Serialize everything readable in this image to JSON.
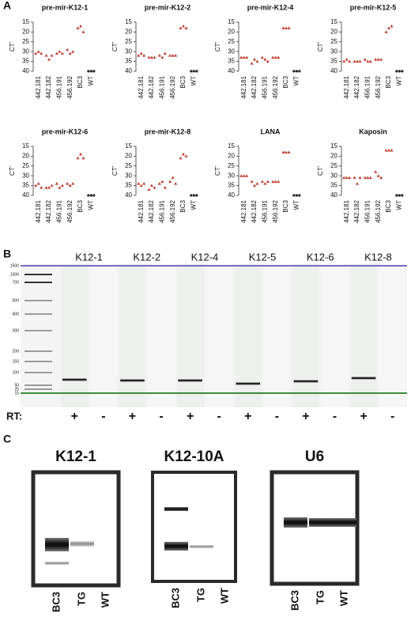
{
  "chart_data": [
    {
      "type": "scatter",
      "title": "pre-mir-K12-1",
      "ylabel": "CT'",
      "categories": [
        "442.181",
        "442.182",
        "456.191",
        "456.192",
        "BC3",
        "WT"
      ],
      "values": [
        [
          31,
          30,
          31
        ],
        [
          32,
          34,
          32
        ],
        [
          31,
          30,
          31
        ],
        [
          29,
          31,
          30
        ],
        [
          18,
          17,
          20
        ],
        [
          40,
          40,
          40
        ]
      ],
      "ylim": [
        15,
        40
      ],
      "inverted": true,
      "yticks": [
        15,
        20,
        25,
        30,
        35,
        40
      ],
      "color": "#c0392b",
      "undetected_color": "#222222"
    },
    {
      "type": "scatter",
      "title": "pre-mir-K12-2",
      "ylabel": "CT'",
      "categories": [
        "442.181",
        "442.182",
        "456.191",
        "456.192",
        "BC3",
        "WT"
      ],
      "values": [
        [
          32,
          31,
          32
        ],
        [
          33,
          33,
          33
        ],
        [
          32,
          33,
          31
        ],
        [
          32,
          32,
          32
        ],
        [
          18,
          17,
          18
        ],
        [
          40,
          40,
          40
        ]
      ],
      "ylim": [
        15,
        40
      ],
      "inverted": true,
      "yticks": [
        15,
        20,
        25,
        30,
        35,
        40
      ],
      "color": "#c0392b",
      "undetected_color": "#222222"
    },
    {
      "type": "scatter",
      "title": "pre-mir-K12-4",
      "ylabel": "CT'",
      "categories": [
        "442.181",
        "442.182",
        "456.191",
        "456.192",
        "BC3",
        "WT"
      ],
      "values": [
        [
          33,
          33,
          33
        ],
        [
          36,
          34,
          35
        ],
        [
          33,
          34,
          35
        ],
        [
          33,
          33,
          33
        ],
        [
          18,
          18,
          18
        ],
        [
          40,
          40,
          40
        ]
      ],
      "ylim": [
        15,
        40
      ],
      "inverted": true,
      "yticks": [
        15,
        20,
        25,
        30,
        35,
        40
      ],
      "color": "#c0392b",
      "undetected_color": "#222222"
    },
    {
      "type": "scatter",
      "title": "pre-mir-K12-5",
      "ylabel": "CT'",
      "categories": [
        "442.181",
        "442.182",
        "456.191",
        "456.192",
        "BC3",
        "WT"
      ],
      "values": [
        [
          35,
          34,
          35
        ],
        [
          35,
          35,
          35
        ],
        [
          34,
          35,
          35
        ],
        [
          34,
          34,
          34
        ],
        [
          20,
          18,
          17
        ],
        [
          40,
          40,
          40
        ]
      ],
      "ylim": [
        15,
        40
      ],
      "inverted": true,
      "yticks": [
        15,
        20,
        25,
        30,
        35,
        40
      ],
      "color": "#c0392b",
      "undetected_color": "#222222"
    },
    {
      "type": "scatter",
      "title": "pre-mir-K12-6",
      "ylabel": "CT'",
      "categories": [
        "442.181",
        "442.182",
        "456.191",
        "456.192",
        "BC3",
        "WT"
      ],
      "values": [
        [
          35,
          34,
          36
        ],
        [
          36,
          36,
          35
        ],
        [
          34,
          36,
          35
        ],
        [
          34,
          35,
          34
        ],
        [
          21,
          19,
          21
        ],
        [
          40,
          40,
          40
        ]
      ],
      "ylim": [
        15,
        40
      ],
      "inverted": true,
      "yticks": [
        15,
        20,
        25,
        30,
        35,
        40
      ],
      "color": "#c0392b",
      "undetected_color": "#222222"
    },
    {
      "type": "scatter",
      "title": "pre-mir-K12-8",
      "ylabel": "CT'",
      "categories": [
        "442.181",
        "442.182",
        "456.191",
        "456.192",
        "BC3",
        "WT"
      ],
      "values": [
        [
          34,
          35,
          34
        ],
        [
          37,
          35,
          36
        ],
        [
          34,
          33,
          36
        ],
        [
          33,
          31,
          34
        ],
        [
          21,
          19,
          20
        ],
        [
          40,
          40,
          40
        ]
      ],
      "ylim": [
        15,
        40
      ],
      "inverted": true,
      "yticks": [
        15,
        20,
        25,
        30,
        35,
        40
      ],
      "color": "#c0392b",
      "undetected_color": "#222222"
    },
    {
      "type": "scatter",
      "title": "LANA",
      "ylabel": "CT'",
      "categories": [
        "442.181",
        "442.182",
        "456.191",
        "456.192",
        "BC3",
        "WT"
      ],
      "values": [
        [
          30,
          30,
          30
        ],
        [
          33,
          35,
          34
        ],
        [
          33,
          34,
          33
        ],
        [
          33,
          33,
          33
        ],
        [
          18,
          18,
          18
        ],
        [
          40,
          40,
          40
        ]
      ],
      "ylim": [
        15,
        40
      ],
      "inverted": true,
      "yticks": [
        15,
        20,
        25,
        30,
        35,
        40
      ],
      "color": "#c0392b",
      "undetected_color": "#222222"
    },
    {
      "type": "scatter",
      "title": "Kaposin",
      "ylabel": "CT'",
      "categories": [
        "442.181",
        "442.182",
        "456.191",
        "456.192",
        "BC3",
        "WT"
      ],
      "values": [
        [
          31,
          31,
          31
        ],
        [
          31,
          34,
          31
        ],
        [
          31,
          31,
          31
        ],
        [
          28,
          30,
          31
        ],
        [
          17,
          17,
          17
        ],
        [
          40,
          40,
          40
        ]
      ],
      "ylim": [
        15,
        40
      ],
      "inverted": true,
      "yticks": [
        15,
        20,
        25,
        30,
        35,
        40
      ],
      "color": "#c0392b",
      "undetected_color": "#222222"
    }
  ],
  "panel_labels": [
    "A",
    "B",
    "C"
  ],
  "gel": {
    "lanes": [
      "K12-1",
      "K12-2",
      "K12-4",
      "K12-5",
      "K12-6",
      "K12-8"
    ],
    "ladder": [
      1500,
      1000,
      700,
      500,
      400,
      300,
      200,
      150,
      100,
      50,
      25,
      15
    ],
    "rt_label": "RT:",
    "rt": [
      "+",
      "-",
      "+",
      "-",
      "+",
      "-",
      "+",
      "-",
      "+",
      "-",
      "+",
      "-"
    ]
  },
  "blots": [
    {
      "title": "K12-1",
      "lanes": [
        "BC3",
        "TG",
        "WT"
      ]
    },
    {
      "title": "K12-10A",
      "lanes": [
        "BC3",
        "TG",
        "WT"
      ]
    },
    {
      "title": "U6",
      "lanes": [
        "BC3",
        "TG",
        "WT"
      ]
    }
  ]
}
